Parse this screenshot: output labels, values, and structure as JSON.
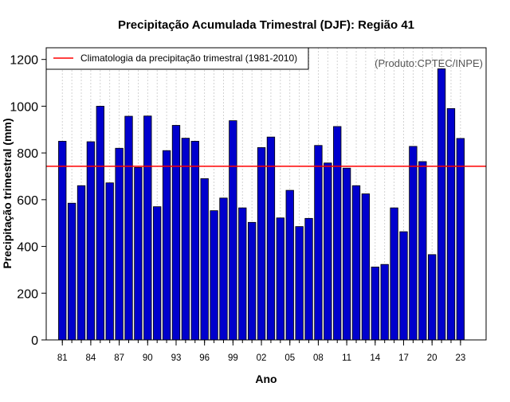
{
  "chart_data": {
    "type": "bar",
    "title": "Precipitação Acumulada Trimestral (DJF): Região 41",
    "xlabel": "Ano",
    "ylabel": "Precipitação trimestral (mm)",
    "ylim": [
      0,
      1250
    ],
    "xlim": [
      1979.3,
      2025.7
    ],
    "yticks": [
      0,
      200,
      400,
      600,
      800,
      1000,
      1200
    ],
    "xtick_labels": [
      "81",
      "84",
      "87",
      "90",
      "93",
      "96",
      "99",
      "02",
      "05",
      "08",
      "11",
      "14",
      "17",
      "20",
      "23"
    ],
    "xtick_years": [
      1981,
      1984,
      1987,
      1990,
      1993,
      1996,
      1999,
      2002,
      2005,
      2008,
      2011,
      2014,
      2017,
      2020,
      2023
    ],
    "grid": "vertical dotted lines at each year",
    "years": [
      1981,
      1982,
      1983,
      1984,
      1985,
      1986,
      1987,
      1988,
      1989,
      1990,
      1991,
      1992,
      1993,
      1994,
      1995,
      1996,
      1997,
      1998,
      1999,
      2000,
      2001,
      2002,
      2003,
      2004,
      2005,
      2006,
      2007,
      2008,
      2009,
      2010,
      2011,
      2012,
      2013,
      2014,
      2015,
      2016,
      2017,
      2018,
      2019,
      2020,
      2021,
      2022,
      2023
    ],
    "values": [
      850,
      585,
      660,
      848,
      1000,
      672,
      820,
      957,
      738,
      958,
      570,
      810,
      918,
      863,
      850,
      690,
      553,
      607,
      938,
      565,
      503,
      823,
      868,
      522,
      640,
      485,
      520,
      832,
      757,
      913,
      735,
      660,
      625,
      312,
      323,
      565,
      463,
      828,
      763,
      365,
      1160,
      990,
      862
    ],
    "climatology": {
      "value": 743,
      "label": "Climatologia da precipitação trimestral (1981-2010)",
      "color": "#ff0000"
    },
    "legend_position": "top-left",
    "bar_color": "#0000cd",
    "bar_edge_color": "#000000"
  },
  "credit": "(Produto:CPTEC/INPE)"
}
